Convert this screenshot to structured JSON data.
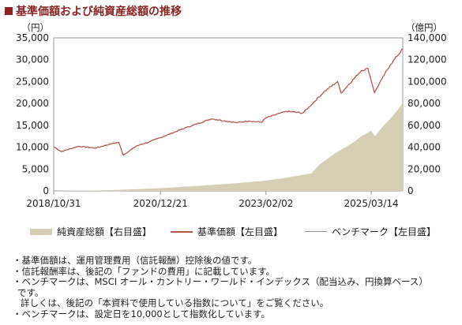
{
  "title": "基準価額および純資産総額の推移",
  "colors": {
    "title": "#8b2324",
    "nav_line": "#b05a52",
    "bench_line": "#8c8c8c",
    "area_fill": "#d6cfb5"
  },
  "chart_data": {
    "type": "line",
    "left_axis": {
      "unit_label": "（円）",
      "ticks": [
        "35,000",
        "30,000",
        "25,000",
        "20,000",
        "15,000",
        "10,000",
        "5,000",
        "0"
      ],
      "range": [
        0,
        35000
      ]
    },
    "right_axis": {
      "unit_label": "（億円）",
      "ticks": [
        "140,000",
        "120,000",
        "100,000",
        "80,000",
        "60,000",
        "40,000",
        "20,000",
        "0"
      ],
      "range": [
        0,
        140000
      ]
    },
    "x_ticks": [
      "2018/10/31",
      "2020/12/21",
      "2023/02/02",
      "2025/03/14"
    ],
    "x_range": [
      "2018/10/31",
      "2025/10/31"
    ],
    "series": [
      {
        "name": "純資産総額【右目盛】",
        "type": "area",
        "axis": "right",
        "points": [
          [
            "2018/10/31",
            50
          ],
          [
            "2019/06/30",
            300
          ],
          [
            "2019/12/31",
            700
          ],
          [
            "2020/06/30",
            1500
          ],
          [
            "2020/12/21",
            2500
          ],
          [
            "2021/06/30",
            4000
          ],
          [
            "2021/12/31",
            5500
          ],
          [
            "2022/06/30",
            7000
          ],
          [
            "2022/12/31",
            9000
          ],
          [
            "2023/06/30",
            12000
          ],
          [
            "2023/12/31",
            16000
          ],
          [
            "2024/02/28",
            24000
          ],
          [
            "2024/06/30",
            35000
          ],
          [
            "2024/10/31",
            44000
          ],
          [
            "2024/12/31",
            50000
          ],
          [
            "2025/03/14",
            55000
          ],
          [
            "2025/04/10",
            50000
          ],
          [
            "2025/05/31",
            58000
          ],
          [
            "2025/07/31",
            66000
          ],
          [
            "2025/09/30",
            75000
          ],
          [
            "2025/10/31",
            81000
          ]
        ]
      },
      {
        "name": "基準価額【左目盛】",
        "type": "line",
        "axis": "left",
        "points": [
          [
            "2018/10/31",
            10100
          ],
          [
            "2018/12/25",
            9000
          ],
          [
            "2019/04/30",
            10200
          ],
          [
            "2019/08/31",
            9800
          ],
          [
            "2019/12/31",
            10800
          ],
          [
            "2020/02/20",
            11100
          ],
          [
            "2020/03/23",
            8200
          ],
          [
            "2020/06/30",
            10300
          ],
          [
            "2020/09/30",
            11200
          ],
          [
            "2020/12/21",
            12200
          ],
          [
            "2021/06/30",
            14500
          ],
          [
            "2021/12/31",
            16500
          ],
          [
            "2022/06/30",
            15600
          ],
          [
            "2022/09/30",
            16000
          ],
          [
            "2022/12/31",
            15700
          ],
          [
            "2023/02/02",
            16700
          ],
          [
            "2023/06/30",
            18200
          ],
          [
            "2023/10/31",
            17800
          ],
          [
            "2023/12/31",
            19700
          ],
          [
            "2024/03/31",
            22600
          ],
          [
            "2024/07/10",
            25000
          ],
          [
            "2024/08/05",
            22400
          ],
          [
            "2024/12/31",
            27500
          ],
          [
            "2025/02/18",
            28000
          ],
          [
            "2025/04/07",
            22500
          ],
          [
            "2025/05/31",
            25600
          ],
          [
            "2025/07/31",
            28800
          ],
          [
            "2025/10/31",
            32500
          ]
        ]
      },
      {
        "name": "ベンチマーク【左目盛】",
        "type": "line",
        "axis": "left",
        "points": []
      }
    ],
    "legend_position": "bottom"
  },
  "notes": [
    "・基準価額は、運用管理費用（信託報酬）控除後の値です。",
    "・信託報酬率は、後記の「ファンドの費用」に記載しています。",
    "・ベンチマークは、MSCI オール・カントリー・ワールド・インデックス（配当込み、円換算ベース）",
    "です。",
    "詳しくは、後記の「本資料で使用している指数について」をご覧ください。",
    "・ベンチマークは、設定日を10,000として指数化しています。"
  ]
}
